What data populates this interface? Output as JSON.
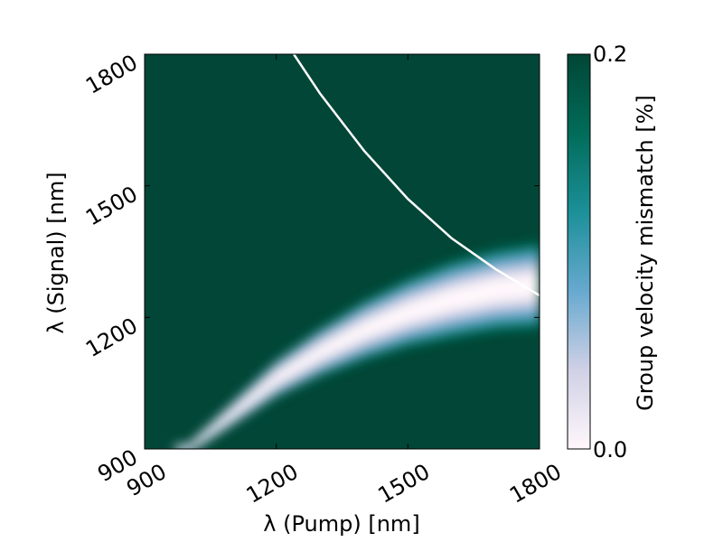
{
  "chart_data": {
    "type": "heatmap",
    "title": "",
    "xlabel": "λ (Pump) [nm]",
    "ylabel": "λ (Signal) [nm]",
    "xlim": [
      900,
      1800
    ],
    "ylim": [
      900,
      1800
    ],
    "xticks": [
      "900",
      "1200",
      "1500",
      "1800"
    ],
    "yticks": [
      "900",
      "1200",
      "1500",
      "1800"
    ],
    "colorbar": {
      "label": "Group velocity mismatch [%]",
      "min_label": "0.0",
      "max_label": "0.2",
      "range": [
        0.0,
        0.2
      ],
      "colormap": [
        "#fff7fb",
        "#d0d1e6",
        "#67a9cf",
        "#1c9099",
        "#016c59",
        "#014636"
      ]
    },
    "ridge_center": [
      {
        "x": 1000,
        "y": 900
      },
      {
        "x": 1100,
        "y": 980
      },
      {
        "x": 1200,
        "y": 1060
      },
      {
        "x": 1300,
        "y": 1120
      },
      {
        "x": 1400,
        "y": 1170
      },
      {
        "x": 1500,
        "y": 1210
      },
      {
        "x": 1600,
        "y": 1240
      },
      {
        "x": 1700,
        "y": 1262
      },
      {
        "x": 1800,
        "y": 1273
      }
    ],
    "ridge_halfwidth": [
      {
        "x": 1000,
        "value": 12
      },
      {
        "x": 1200,
        "value": 45
      },
      {
        "x": 1400,
        "value": 70
      },
      {
        "x": 1600,
        "value": 90
      },
      {
        "x": 1800,
        "value": 100
      }
    ],
    "degenerate_curve": {
      "color": "#ffffff",
      "points": [
        {
          "x": 1240,
          "y": 1800
        },
        {
          "x": 1300,
          "y": 1710
        },
        {
          "x": 1400,
          "y": 1580
        },
        {
          "x": 1500,
          "y": 1470
        },
        {
          "x": 1600,
          "y": 1380
        },
        {
          "x": 1700,
          "y": 1310
        },
        {
          "x": 1800,
          "y": 1250
        }
      ]
    },
    "background_color": "#014636"
  }
}
